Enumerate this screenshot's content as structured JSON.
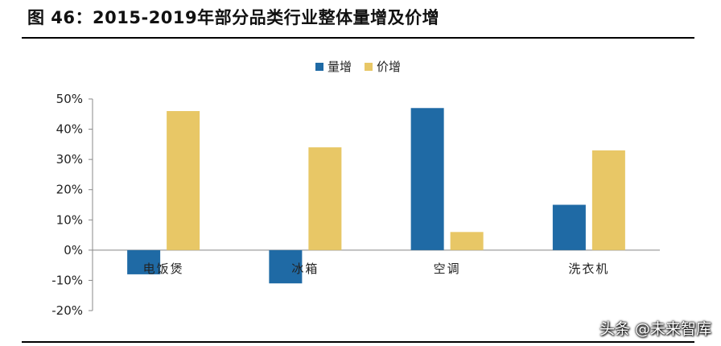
{
  "header": {
    "title": "图 46：2015-2019年部分品类行业整体量增及价增"
  },
  "watermark": "头条 @未来智库",
  "colors": {
    "volume": "#1F6AA5",
    "price": "#E8C766",
    "axis": "#888888"
  },
  "chart_data": {
    "type": "bar",
    "categories": [
      "电饭煲",
      "冰箱",
      "空调",
      "洗衣机"
    ],
    "series": [
      {
        "name": "量增",
        "values": [
          -8,
          -11,
          47,
          15
        ]
      },
      {
        "name": "价增",
        "values": [
          46,
          34,
          6,
          33
        ]
      }
    ],
    "ylim": [
      -20,
      50
    ],
    "yticks": [
      50,
      40,
      30,
      20,
      10,
      0,
      -10,
      -20
    ],
    "ytick_format": "percent",
    "legend": "top-center",
    "grid": false
  }
}
